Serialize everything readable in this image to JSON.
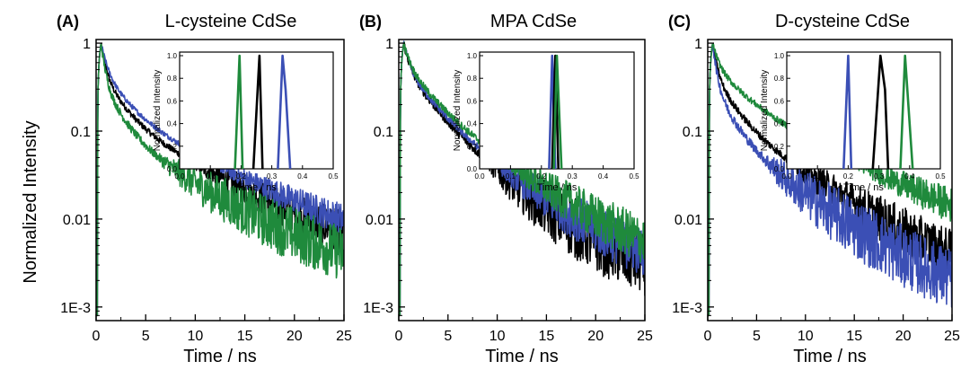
{
  "ylabel": "Normalized Intensity",
  "colors": {
    "black": "#000000",
    "blue": "#3b4fb5",
    "green": "#1f8a3c"
  },
  "chart_data": [
    {
      "type": "line",
      "panel": "(A)",
      "title": "L-cysteine CdSe",
      "xlabel": "Time / ns",
      "ylabel": "Normalized Intensity",
      "xlim": [
        0,
        25
      ],
      "ylim": [
        0.0007,
        1.1
      ],
      "yscale": "log",
      "xticks": [
        0,
        5,
        10,
        15,
        20,
        25
      ],
      "yticks": [
        {
          "v": 1,
          "label": "1"
        },
        {
          "v": 0.1,
          "label": "0.1"
        },
        {
          "v": 0.01,
          "label": "0.01"
        },
        {
          "v": 0.001,
          "label": "1E-3"
        }
      ],
      "series": [
        {
          "color": "black",
          "A1": 0.55,
          "t1": 0.4,
          "A2": 0.3,
          "t2": 1.8,
          "A3": 0.15,
          "t3": 7.0,
          "floor": 0.0026,
          "noise": 0.3
        },
        {
          "color": "blue",
          "A1": 0.5,
          "t1": 0.5,
          "A2": 0.32,
          "t2": 2.0,
          "A3": 0.18,
          "t3": 7.5,
          "floor": 0.0029,
          "noise": 0.25
        },
        {
          "color": "green",
          "A1": 0.62,
          "t1": 0.35,
          "A2": 0.28,
          "t2": 1.6,
          "A3": 0.1,
          "t3": 6.5,
          "floor": 0.0017,
          "noise": 0.4
        }
      ],
      "inset": {
        "xlabel": "Time / ns",
        "ylabel": "Normalized Intensity",
        "xlim": [
          0,
          0.5
        ],
        "ylim": [
          0,
          1
        ],
        "xticks": [
          "0.0",
          "0.1",
          "0.2",
          "0.3",
          "0.4",
          "0.5"
        ],
        "yticks": [
          "0.0",
          "0.2",
          "0.4",
          "0.6",
          "0.8",
          "1.0"
        ],
        "peaks": [
          {
            "color": "green",
            "points": [
              [
                0.18,
                0
              ],
              [
                0.195,
                1.0
              ],
              [
                0.205,
                0
              ]
            ]
          },
          {
            "color": "black",
            "points": [
              [
                0.24,
                0
              ],
              [
                0.26,
                1.0
              ],
              [
                0.27,
                0
              ]
            ]
          },
          {
            "color": "blue",
            "points": [
              [
                0.32,
                0
              ],
              [
                0.335,
                1.0
              ],
              [
                0.345,
                0.7
              ],
              [
                0.36,
                0
              ]
            ]
          }
        ]
      }
    },
    {
      "type": "line",
      "panel": "(B)",
      "title": "MPA CdSe",
      "xlabel": "Time / ns",
      "ylabel": "",
      "xlim": [
        0,
        25
      ],
      "ylim": [
        0.0007,
        1.1
      ],
      "yscale": "log",
      "xticks": [
        0,
        5,
        10,
        15,
        20,
        25
      ],
      "yticks": [
        {
          "v": 1,
          "label": "1"
        },
        {
          "v": 0.1,
          "label": "0.1"
        },
        {
          "v": 0.01,
          "label": "0.01"
        },
        {
          "v": 0.001,
          "label": "1E-3"
        }
      ],
      "series": [
        {
          "color": "black",
          "A1": 0.45,
          "t1": 0.5,
          "A2": 0.35,
          "t2": 2.2,
          "A3": 0.2,
          "t3": 5.0,
          "floor": 0.0015,
          "noise": 0.45
        },
        {
          "color": "blue",
          "A1": 0.45,
          "t1": 0.5,
          "A2": 0.35,
          "t2": 2.3,
          "A3": 0.2,
          "t3": 5.5,
          "floor": 0.0018,
          "noise": 0.35
        },
        {
          "color": "green",
          "A1": 0.42,
          "t1": 0.55,
          "A2": 0.36,
          "t2": 2.4,
          "A3": 0.22,
          "t3": 6.0,
          "floor": 0.0019,
          "noise": 0.35
        }
      ],
      "inset": {
        "xlabel": "Time / ns",
        "ylabel": "Normalized Intensity",
        "xlim": [
          0,
          0.5
        ],
        "ylim": [
          0,
          1
        ],
        "xticks": [
          "0.0",
          "0.1",
          "0.2",
          "0.3",
          "0.4",
          "0.5"
        ],
        "yticks": [
          "0.0",
          "0.2",
          "0.4",
          "0.6",
          "0.8",
          "1.0"
        ],
        "peaks": [
          {
            "color": "blue",
            "points": [
              [
                0.225,
                0
              ],
              [
                0.235,
                1.0
              ],
              [
                0.245,
                0
              ]
            ]
          },
          {
            "color": "black",
            "points": [
              [
                0.235,
                0
              ],
              [
                0.245,
                1.0
              ],
              [
                0.255,
                0
              ]
            ]
          },
          {
            "color": "green",
            "points": [
              [
                0.24,
                0
              ],
              [
                0.25,
                1.0
              ],
              [
                0.265,
                0
              ]
            ]
          }
        ]
      }
    },
    {
      "type": "line",
      "panel": "(C)",
      "title": "D-cysteine CdSe",
      "xlabel": "Time / ns",
      "ylabel": "",
      "xlim": [
        0,
        25
      ],
      "ylim": [
        0.0007,
        1.1
      ],
      "yscale": "log",
      "xticks": [
        0,
        5,
        10,
        15,
        20,
        25
      ],
      "yticks": [
        {
          "v": 1,
          "label": "1"
        },
        {
          "v": 0.1,
          "label": "0.1"
        },
        {
          "v": 0.01,
          "label": "0.01"
        },
        {
          "v": 0.001,
          "label": "1E-3"
        }
      ],
      "series": [
        {
          "color": "black",
          "A1": 0.55,
          "t1": 0.4,
          "A2": 0.3,
          "t2": 1.8,
          "A3": 0.15,
          "t3": 6.0,
          "floor": 0.0015,
          "noise": 0.35
        },
        {
          "color": "blue",
          "A1": 0.65,
          "t1": 0.35,
          "A2": 0.25,
          "t2": 1.6,
          "A3": 0.1,
          "t3": 5.5,
          "floor": 0.0009,
          "noise": 0.45
        },
        {
          "color": "green",
          "A1": 0.42,
          "t1": 0.5,
          "A2": 0.33,
          "t2": 2.5,
          "A3": 0.25,
          "t3": 8.0,
          "floor": 0.0025,
          "noise": 0.3
        }
      ],
      "inset": {
        "xlabel": "Time / ns",
        "ylabel": "Normalized Intensity",
        "xlim": [
          0,
          0.5
        ],
        "ylim": [
          0,
          1
        ],
        "xticks": [
          "0.0",
          "0.1",
          "0.2",
          "0.3",
          "0.4",
          "0.5"
        ],
        "yticks": [
          "0.0",
          "0.2",
          "0.4",
          "0.6",
          "0.8",
          "1.0"
        ],
        "peaks": [
          {
            "color": "blue",
            "points": [
              [
                0.185,
                0
              ],
              [
                0.2,
                1.0
              ],
              [
                0.21,
                0
              ]
            ]
          },
          {
            "color": "black",
            "points": [
              [
                0.28,
                0
              ],
              [
                0.305,
                1.0
              ],
              [
                0.32,
                0.7
              ],
              [
                0.33,
                0
              ]
            ]
          },
          {
            "color": "green",
            "points": [
              [
                0.37,
                0
              ],
              [
                0.385,
                1.0
              ],
              [
                0.4,
                0.4
              ],
              [
                0.41,
                0
              ]
            ]
          }
        ]
      }
    }
  ]
}
